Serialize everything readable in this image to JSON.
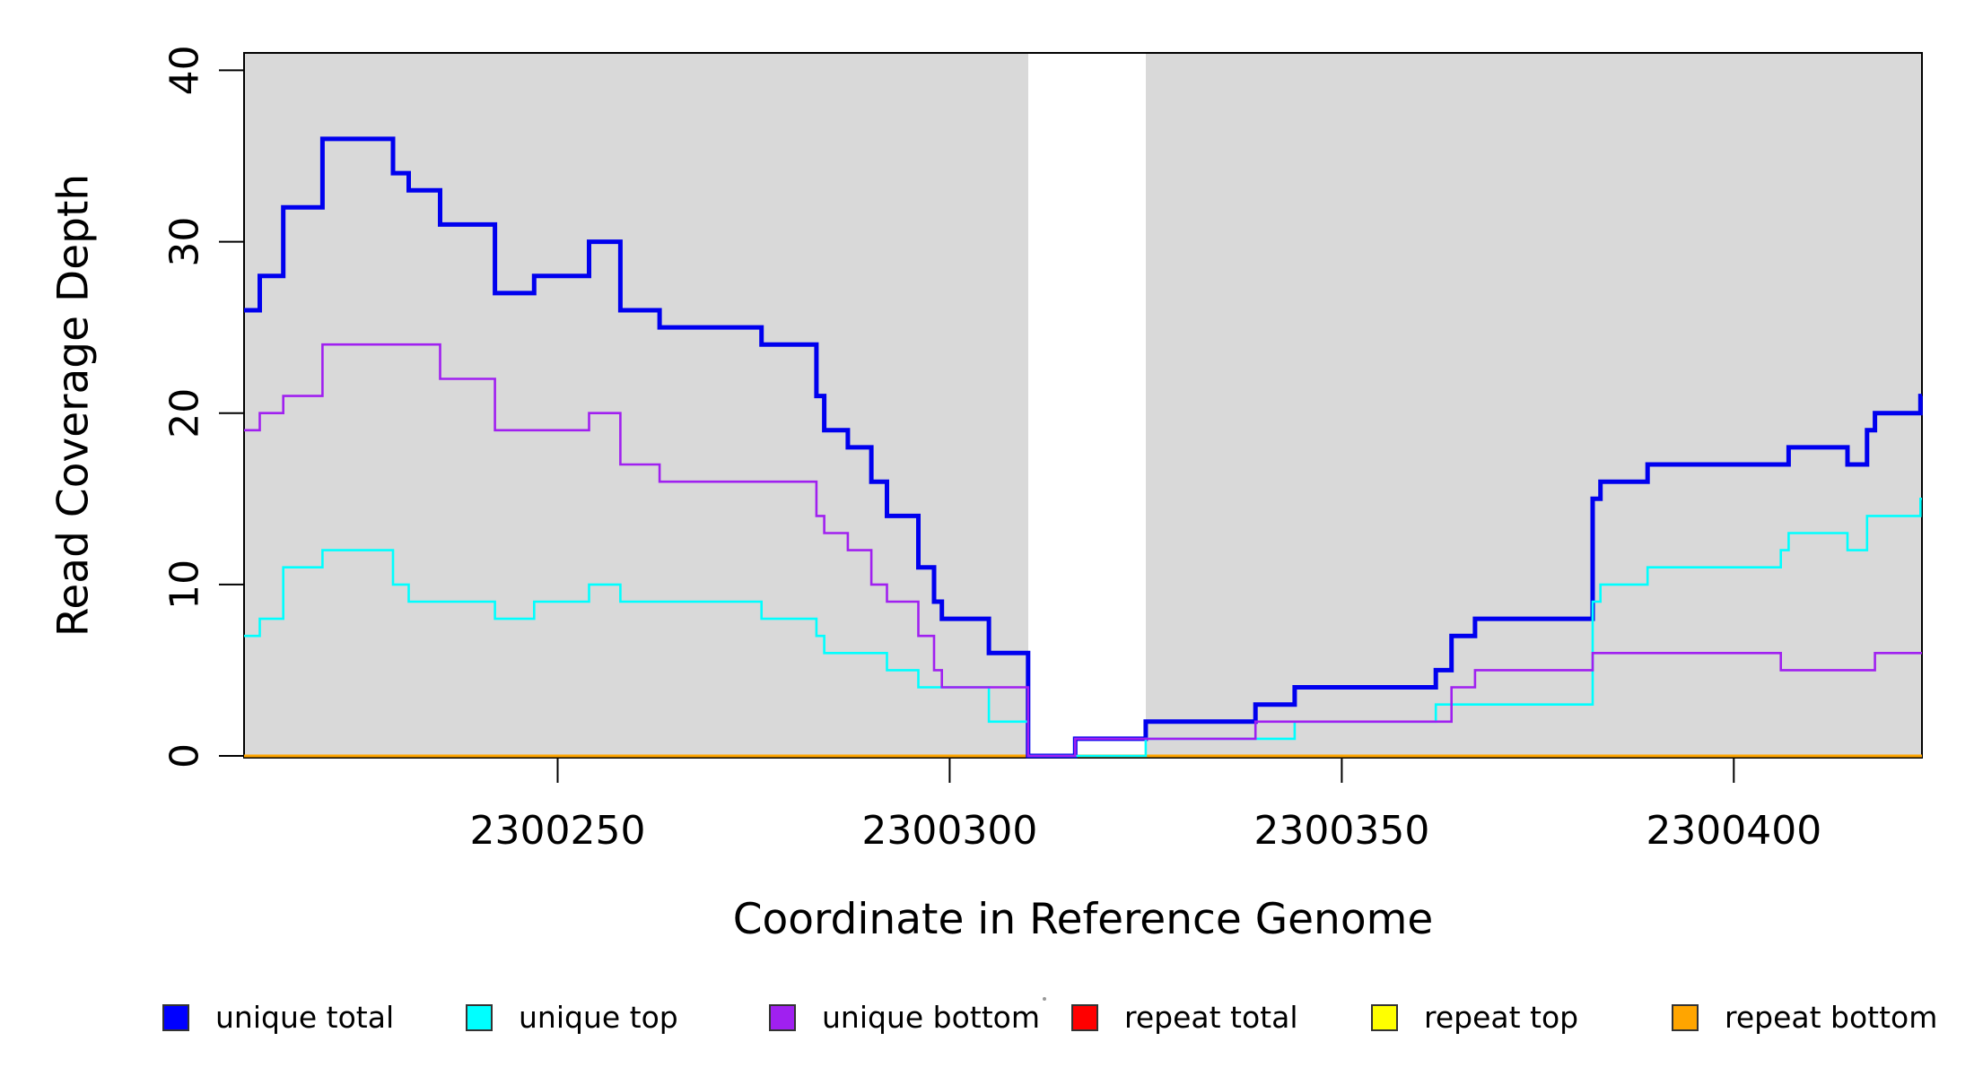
{
  "chart_data": {
    "type": "line",
    "subtype": "step",
    "title": "",
    "xlabel": "Coordinate in Reference Genome",
    "ylabel": "Read Coverage Depth",
    "xlim": [
      2300210,
      2300424
    ],
    "ylim": [
      0,
      41
    ],
    "x_ticks": [
      2300250,
      2300300,
      2300350,
      2300400
    ],
    "y_ticks": [
      0,
      10,
      20,
      30,
      40
    ],
    "grid": false,
    "legend_position": "bottom",
    "shade_color": "#D9D9D9",
    "shaded_regions": [
      [
        2300210,
        2300310
      ],
      [
        2300325,
        2300424
      ]
    ],
    "gap_region": [
      2300310,
      2300325
    ],
    "series": [
      {
        "name": "repeat total",
        "color": "#FF0000",
        "line_width": 3,
        "steps": [
          [
            2300210,
            0
          ]
        ]
      },
      {
        "name": "repeat top",
        "color": "#FFFF00",
        "line_width": 3,
        "steps": [
          [
            2300210,
            0
          ]
        ]
      },
      {
        "name": "repeat bottom",
        "color": "#FFA500",
        "line_width": 3,
        "steps": [
          [
            2300210,
            0
          ]
        ]
      },
      {
        "name": "unique total",
        "color": "#0000EE",
        "line_width": 5,
        "steps": [
          [
            2300210,
            26
          ],
          [
            2300212,
            28
          ],
          [
            2300215,
            32
          ],
          [
            2300220,
            36
          ],
          [
            2300229,
            34
          ],
          [
            2300231,
            33
          ],
          [
            2300235,
            31
          ],
          [
            2300242,
            27
          ],
          [
            2300247,
            28
          ],
          [
            2300254,
            30
          ],
          [
            2300258,
            26
          ],
          [
            2300263,
            25
          ],
          [
            2300276,
            24
          ],
          [
            2300283,
            21
          ],
          [
            2300284,
            19
          ],
          [
            2300287,
            18
          ],
          [
            2300290,
            16
          ],
          [
            2300292,
            14
          ],
          [
            2300296,
            11
          ],
          [
            2300298,
            9
          ],
          [
            2300299,
            8
          ],
          [
            2300305,
            6
          ],
          [
            2300310,
            0
          ],
          [
            2300316,
            1
          ],
          [
            2300325,
            2
          ],
          [
            2300339,
            3
          ],
          [
            2300344,
            4
          ],
          [
            2300362,
            5
          ],
          [
            2300364,
            7
          ],
          [
            2300367,
            8
          ],
          [
            2300382,
            15
          ],
          [
            2300383,
            16
          ],
          [
            2300389,
            17
          ],
          [
            2300407,
            18
          ],
          [
            2300414.5,
            17
          ],
          [
            2300417,
            19
          ],
          [
            2300418,
            20
          ],
          [
            2300423.8,
            21
          ]
        ]
      },
      {
        "name": "unique top",
        "color": "#00FFFF",
        "line_width": 2.6,
        "steps": [
          [
            2300210,
            7
          ],
          [
            2300212,
            8
          ],
          [
            2300215,
            11
          ],
          [
            2300220,
            12
          ],
          [
            2300229,
            10
          ],
          [
            2300231,
            9
          ],
          [
            2300242,
            8
          ],
          [
            2300247,
            9
          ],
          [
            2300254,
            10
          ],
          [
            2300258,
            9
          ],
          [
            2300276,
            8
          ],
          [
            2300283,
            7
          ],
          [
            2300284,
            6
          ],
          [
            2300292,
            5
          ],
          [
            2300296,
            4
          ],
          [
            2300305,
            2
          ],
          [
            2300310,
            0
          ],
          [
            2300325,
            1
          ],
          [
            2300344,
            2
          ],
          [
            2300362,
            3
          ],
          [
            2300382,
            9
          ],
          [
            2300383,
            10
          ],
          [
            2300389,
            11
          ],
          [
            2300406,
            12
          ],
          [
            2300407,
            13
          ],
          [
            2300414.5,
            12
          ],
          [
            2300417,
            14
          ],
          [
            2300423.8,
            15
          ]
        ]
      },
      {
        "name": "unique bottom",
        "color": "#A020F0",
        "line_width": 2.6,
        "steps": [
          [
            2300210,
            19
          ],
          [
            2300212,
            20
          ],
          [
            2300215,
            21
          ],
          [
            2300220,
            24
          ],
          [
            2300235,
            22
          ],
          [
            2300242,
            19
          ],
          [
            2300254,
            20
          ],
          [
            2300258,
            17
          ],
          [
            2300263,
            16
          ],
          [
            2300283,
            14
          ],
          [
            2300284,
            13
          ],
          [
            2300287,
            12
          ],
          [
            2300290,
            10
          ],
          [
            2300292,
            9
          ],
          [
            2300296,
            7
          ],
          [
            2300298,
            5
          ],
          [
            2300299,
            4
          ],
          [
            2300310,
            0
          ],
          [
            2300316,
            1
          ],
          [
            2300339,
            2
          ],
          [
            2300364,
            4
          ],
          [
            2300367,
            5
          ],
          [
            2300382,
            6
          ],
          [
            2300406,
            5
          ],
          [
            2300418,
            6
          ]
        ]
      }
    ],
    "legend": [
      {
        "label": "unique total",
        "color": "#0000FF"
      },
      {
        "label": "unique top",
        "color": "#00FFFF"
      },
      {
        "label": "unique bottom",
        "color": "#A020F0"
      },
      {
        "label": "repeat total",
        "color": "#FF0000"
      },
      {
        "label": "repeat top",
        "color": "#FFFF00"
      },
      {
        "label": "repeat bottom",
        "color": "#FFA500"
      }
    ]
  }
}
